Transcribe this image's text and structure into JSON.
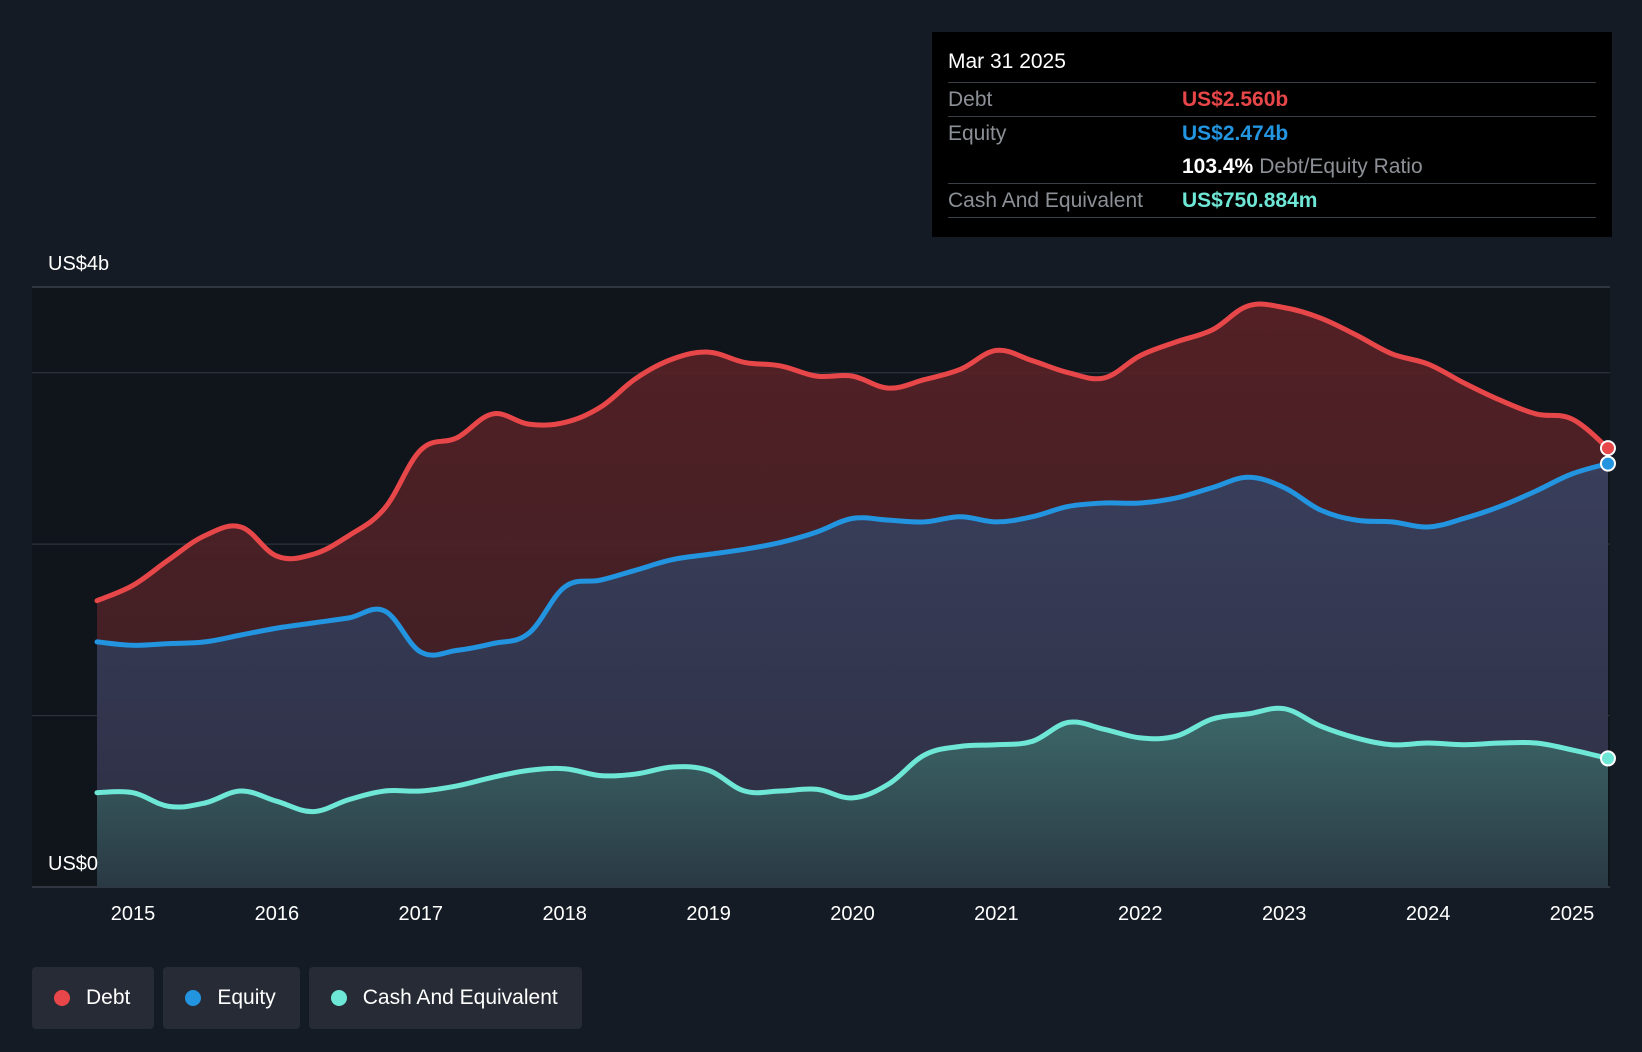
{
  "tooltip": {
    "date": "Mar 31 2025",
    "debt_label": "Debt",
    "debt_value": "US$2.560b",
    "equity_label": "Equity",
    "equity_value": "US$2.474b",
    "ratio_value": "103.4%",
    "ratio_label": "Debt/Equity Ratio",
    "cash_label": "Cash And Equivalent",
    "cash_value": "US$750.884m"
  },
  "legend": {
    "debt": "Debt",
    "equity": "Equity",
    "cash": "Cash And Equivalent"
  },
  "colors": {
    "debt": "#e84749",
    "equity": "#2394df",
    "cash": "#6ee7d6",
    "background": "#151b24"
  },
  "chart_data": {
    "type": "area",
    "title": "",
    "xlabel": "",
    "ylabel": "",
    "ylim": [
      0,
      3.5
    ],
    "xlim": [
      2014.55,
      2025.3
    ],
    "y_tick_labels": [
      {
        "value": 3.5,
        "label": "US$4b"
      },
      {
        "value": 0,
        "label": "US$0"
      }
    ],
    "gridlines": [
      3.0,
      2.0,
      1.0
    ],
    "x_ticks": [
      2015,
      2016,
      2017,
      2018,
      2019,
      2020,
      2021,
      2022,
      2023,
      2024,
      2025
    ],
    "x_tick_labels": [
      "2015",
      "2016",
      "2017",
      "2018",
      "2019",
      "2020",
      "2021",
      "2022",
      "2023",
      "2024",
      "2025"
    ],
    "series": [
      {
        "name": "Debt",
        "key": "debt",
        "points": [
          [
            2014.75,
            1.67
          ],
          [
            2015.0,
            1.76
          ],
          [
            2015.25,
            1.91
          ],
          [
            2015.5,
            2.05
          ],
          [
            2015.75,
            2.1
          ],
          [
            2016.0,
            1.93
          ],
          [
            2016.25,
            1.94
          ],
          [
            2016.5,
            2.05
          ],
          [
            2016.75,
            2.21
          ],
          [
            2017.0,
            2.55
          ],
          [
            2017.25,
            2.62
          ],
          [
            2017.5,
            2.76
          ],
          [
            2017.75,
            2.7
          ],
          [
            2018.0,
            2.71
          ],
          [
            2018.25,
            2.8
          ],
          [
            2018.5,
            2.97
          ],
          [
            2018.75,
            3.08
          ],
          [
            2019.0,
            3.12
          ],
          [
            2019.25,
            3.06
          ],
          [
            2019.5,
            3.04
          ],
          [
            2019.75,
            2.98
          ],
          [
            2020.0,
            2.98
          ],
          [
            2020.25,
            2.91
          ],
          [
            2020.5,
            2.96
          ],
          [
            2020.75,
            3.02
          ],
          [
            2021.0,
            3.13
          ],
          [
            2021.25,
            3.07
          ],
          [
            2021.5,
            3.0
          ],
          [
            2021.75,
            2.97
          ],
          [
            2022.0,
            3.1
          ],
          [
            2022.25,
            3.18
          ],
          [
            2022.5,
            3.25
          ],
          [
            2022.75,
            3.39
          ],
          [
            2023.0,
            3.38
          ],
          [
            2023.25,
            3.32
          ],
          [
            2023.5,
            3.22
          ],
          [
            2023.75,
            3.11
          ],
          [
            2024.0,
            3.05
          ],
          [
            2024.25,
            2.94
          ],
          [
            2024.5,
            2.84
          ],
          [
            2024.75,
            2.76
          ],
          [
            2025.0,
            2.73
          ],
          [
            2025.25,
            2.56
          ]
        ]
      },
      {
        "name": "Equity",
        "key": "equity",
        "points": [
          [
            2014.75,
            1.43
          ],
          [
            2015.0,
            1.41
          ],
          [
            2015.25,
            1.42
          ],
          [
            2015.5,
            1.43
          ],
          [
            2015.75,
            1.47
          ],
          [
            2016.0,
            1.51
          ],
          [
            2016.25,
            1.54
          ],
          [
            2016.5,
            1.57
          ],
          [
            2016.75,
            1.61
          ],
          [
            2017.0,
            1.37
          ],
          [
            2017.25,
            1.38
          ],
          [
            2017.5,
            1.42
          ],
          [
            2017.75,
            1.48
          ],
          [
            2018.0,
            1.75
          ],
          [
            2018.25,
            1.79
          ],
          [
            2018.5,
            1.85
          ],
          [
            2018.75,
            1.91
          ],
          [
            2019.0,
            1.94
          ],
          [
            2019.25,
            1.97
          ],
          [
            2019.5,
            2.01
          ],
          [
            2019.75,
            2.07
          ],
          [
            2020.0,
            2.15
          ],
          [
            2020.25,
            2.14
          ],
          [
            2020.5,
            2.13
          ],
          [
            2020.75,
            2.16
          ],
          [
            2021.0,
            2.13
          ],
          [
            2021.25,
            2.16
          ],
          [
            2021.5,
            2.22
          ],
          [
            2021.75,
            2.24
          ],
          [
            2022.0,
            2.24
          ],
          [
            2022.25,
            2.27
          ],
          [
            2022.5,
            2.33
          ],
          [
            2022.75,
            2.39
          ],
          [
            2023.0,
            2.33
          ],
          [
            2023.25,
            2.2
          ],
          [
            2023.5,
            2.14
          ],
          [
            2023.75,
            2.13
          ],
          [
            2024.0,
            2.1
          ],
          [
            2024.25,
            2.15
          ],
          [
            2024.5,
            2.22
          ],
          [
            2024.75,
            2.31
          ],
          [
            2025.0,
            2.41
          ],
          [
            2025.25,
            2.47
          ]
        ]
      },
      {
        "name": "Cash And Equivalent",
        "key": "cash",
        "points": [
          [
            2014.75,
            0.55
          ],
          [
            2015.0,
            0.55
          ],
          [
            2015.25,
            0.47
          ],
          [
            2015.5,
            0.49
          ],
          [
            2015.75,
            0.56
          ],
          [
            2016.0,
            0.5
          ],
          [
            2016.25,
            0.44
          ],
          [
            2016.5,
            0.51
          ],
          [
            2016.75,
            0.56
          ],
          [
            2017.0,
            0.56
          ],
          [
            2017.25,
            0.59
          ],
          [
            2017.5,
            0.64
          ],
          [
            2017.75,
            0.68
          ],
          [
            2018.0,
            0.69
          ],
          [
            2018.25,
            0.65
          ],
          [
            2018.5,
            0.66
          ],
          [
            2018.75,
            0.7
          ],
          [
            2019.0,
            0.68
          ],
          [
            2019.25,
            0.56
          ],
          [
            2019.5,
            0.56
          ],
          [
            2019.75,
            0.57
          ],
          [
            2020.0,
            0.52
          ],
          [
            2020.25,
            0.6
          ],
          [
            2020.5,
            0.77
          ],
          [
            2020.75,
            0.82
          ],
          [
            2021.0,
            0.83
          ],
          [
            2021.25,
            0.85
          ],
          [
            2021.5,
            0.96
          ],
          [
            2021.75,
            0.92
          ],
          [
            2022.0,
            0.87
          ],
          [
            2022.25,
            0.88
          ],
          [
            2022.5,
            0.98
          ],
          [
            2022.75,
            1.01
          ],
          [
            2023.0,
            1.04
          ],
          [
            2023.25,
            0.94
          ],
          [
            2023.5,
            0.87
          ],
          [
            2023.75,
            0.83
          ],
          [
            2024.0,
            0.84
          ],
          [
            2024.25,
            0.83
          ],
          [
            2024.5,
            0.84
          ],
          [
            2024.75,
            0.84
          ],
          [
            2025.0,
            0.8
          ],
          [
            2025.25,
            0.75
          ]
        ]
      }
    ]
  }
}
